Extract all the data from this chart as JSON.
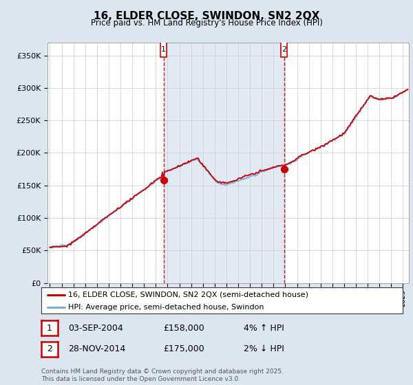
{
  "title": "16, ELDER CLOSE, SWINDON, SN2 2QX",
  "subtitle": "Price paid vs. HM Land Registry's House Price Index (HPI)",
  "ylabel_ticks": [
    "£0",
    "£50K",
    "£100K",
    "£150K",
    "£200K",
    "£250K",
    "£300K",
    "£350K"
  ],
  "ytick_values": [
    0,
    50000,
    100000,
    150000,
    200000,
    250000,
    300000,
    350000
  ],
  "ylim": [
    0,
    370000
  ],
  "xlim_start": 1994.8,
  "xlim_end": 2025.5,
  "purchase1_x": 2004.67,
  "purchase1_y": 158000,
  "purchase2_x": 2014.9,
  "purchase2_y": 175000,
  "vline1_x": 2004.67,
  "vline2_x": 2014.9,
  "legend_property_label": "16, ELDER CLOSE, SWINDON, SN2 2QX (semi-detached house)",
  "legend_hpi_label": "HPI: Average price, semi-detached house, Swindon",
  "table_row1": [
    "1",
    "03-SEP-2004",
    "£158,000",
    "4% ↑ HPI"
  ],
  "table_row2": [
    "2",
    "28-NOV-2014",
    "£175,000",
    "2% ↓ HPI"
  ],
  "footnote": "Contains HM Land Registry data © Crown copyright and database right 2025.\nThis data is licensed under the Open Government Licence v3.0.",
  "property_color": "#cc0000",
  "hpi_color": "#7bafd4",
  "fill_between_color": "#c8d9ec",
  "background_color": "#dce6f1",
  "plot_bg_color": "#ffffff",
  "vline_color": "#cc0000",
  "shade_color": "#dce6f1",
  "grid_color": "#cccccc"
}
